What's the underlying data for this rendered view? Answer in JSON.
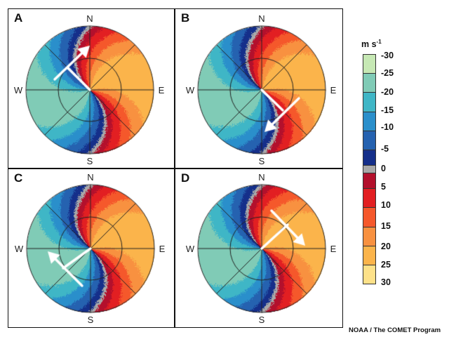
{
  "panels": [
    {
      "label": "A",
      "arrow_direction": "NE"
    },
    {
      "label": "B",
      "arrow_direction": "SW"
    },
    {
      "label": "C",
      "arrow_direction": "NW"
    },
    {
      "label": "D",
      "arrow_direction": "SE"
    }
  ],
  "compass": {
    "n": "N",
    "s": "S",
    "e": "E",
    "w": "W"
  },
  "legend": {
    "unit": "m s",
    "unit_exp": "-1",
    "ticks": [
      "-30",
      "-25",
      "-20",
      "-15",
      "-10",
      "-5",
      "0",
      "5",
      "10",
      "15",
      "20",
      "25",
      "30"
    ],
    "bins": [
      {
        "range": "-30 to -25",
        "color": "#c6e8b4"
      },
      {
        "range": "-25 to -20",
        "color": "#80cbb6"
      },
      {
        "range": "-20 to -15",
        "color": "#3fb6c6"
      },
      {
        "range": "-15 to -10",
        "color": "#2a8fcb"
      },
      {
        "range": "-10 to -5",
        "color": "#2562b0"
      },
      {
        "range": "-5 to 0",
        "color": "#152f8a"
      },
      {
        "range": "0",
        "color": "#a9a9a9"
      },
      {
        "range": "0 to 5",
        "color": "#b3102c"
      },
      {
        "range": "5 to 10",
        "color": "#e21f22"
      },
      {
        "range": "10 to 15",
        "color": "#f5582b"
      },
      {
        "range": "15 to 20",
        "color": "#f89140"
      },
      {
        "range": "20 to 25",
        "color": "#fbb44b"
      },
      {
        "range": "25 to 30",
        "color": "#fde189"
      }
    ]
  },
  "credit": "NOAA / The COMET Program"
}
